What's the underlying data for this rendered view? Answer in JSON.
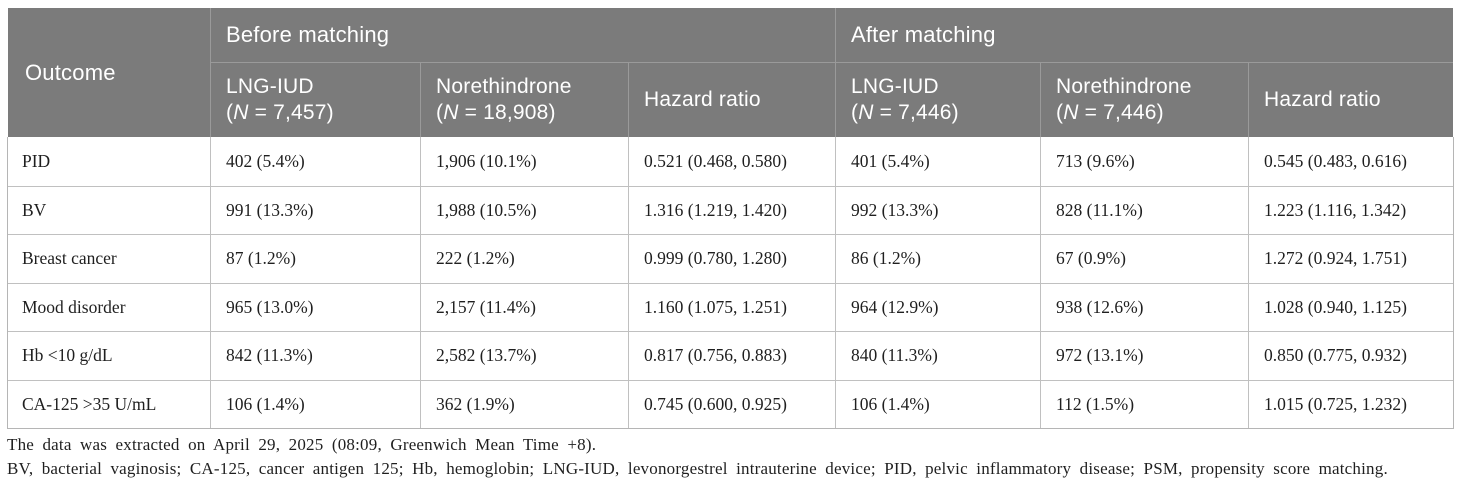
{
  "table": {
    "header": {
      "outcome_label": "Outcome",
      "groups": [
        {
          "label": "Before matching"
        },
        {
          "label": "After matching"
        }
      ],
      "columns": [
        {
          "line1": "LNG-IUD",
          "pre": "(",
          "n": "N",
          "post": " = 7,457)"
        },
        {
          "line1": "Norethindrone",
          "pre": "(",
          "n": "N",
          "post": " = 18,908)"
        },
        {
          "label": "Hazard ratio"
        },
        {
          "line1": "LNG-IUD",
          "pre": "(",
          "n": "N",
          "post": " = 7,446)"
        },
        {
          "line1": "Norethindrone",
          "pre": "(",
          "n": "N",
          "post": " = 7,446)"
        },
        {
          "label": "Hazard ratio"
        }
      ]
    },
    "rows": [
      {
        "outcome": "PID",
        "cells": [
          "402 (5.4%)",
          "1,906 (10.1%)",
          "0.521 (0.468, 0.580)",
          "401 (5.4%)",
          "713 (9.6%)",
          "0.545 (0.483, 0.616)"
        ]
      },
      {
        "outcome": "BV",
        "cells": [
          "991 (13.3%)",
          "1,988 (10.5%)",
          "1.316 (1.219, 1.420)",
          "992 (13.3%)",
          "828 (11.1%)",
          "1.223 (1.116, 1.342)"
        ]
      },
      {
        "outcome": "Breast cancer",
        "cells": [
          "87 (1.2%)",
          "222 (1.2%)",
          "0.999 (0.780, 1.280)",
          "86 (1.2%)",
          "67 (0.9%)",
          "1.272 (0.924, 1.751)"
        ]
      },
      {
        "outcome": "Mood disorder",
        "cells": [
          "965 (13.0%)",
          "2,157 (11.4%)",
          "1.160 (1.075, 1.251)",
          "964 (12.9%)",
          "938 (12.6%)",
          "1.028 (0.940, 1.125)"
        ]
      },
      {
        "outcome": "Hb <10 g/dL",
        "cells": [
          "842 (11.3%)",
          "2,582 (13.7%)",
          "0.817 (0.756, 0.883)",
          "840 (11.3%)",
          "972 (13.1%)",
          "0.850 (0.775, 0.932)"
        ]
      },
      {
        "outcome": "CA-125 >35 U/mL",
        "cells": [
          "106 (1.4%)",
          "362 (1.9%)",
          "0.745 (0.600, 0.925)",
          "106 (1.4%)",
          "112 (1.5%)",
          "1.015 (0.725, 1.232)"
        ]
      }
    ]
  },
  "footnotes": {
    "line1": "The data was extracted on April 29, 2025 (08:09, Greenwich Mean Time +8).",
    "line2": "BV, bacterial vaginosis; CA-125, cancer antigen 125; Hb, hemoglobin; LNG-IUD, levonorgestrel intrauterine device; PID, pelvic inflammatory disease; PSM, propensity score matching."
  },
  "colors": {
    "header_bg": "#7b7b7b",
    "header_text": "#ffffff",
    "header_divider": "#9a9a9a",
    "cell_border": "#c0c0c0",
    "body_text": "#1f1f1f"
  }
}
